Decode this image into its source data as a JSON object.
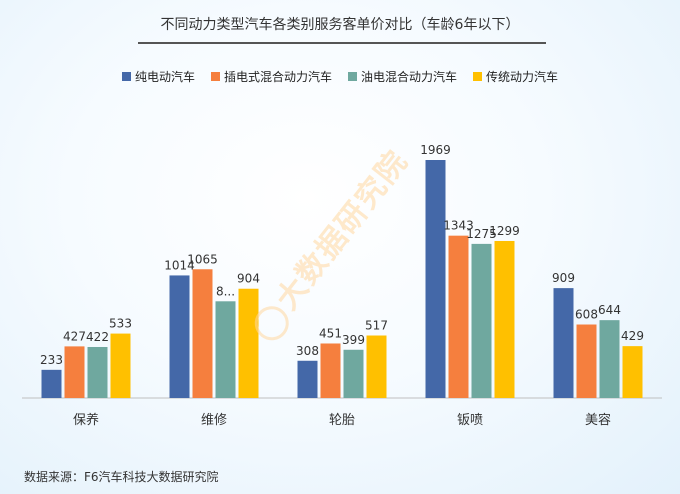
{
  "chart_data": {
    "type": "bar",
    "title": "不同动力类型汽车各类别服务客单价对比（车龄6年以下）",
    "categories": [
      "保养",
      "维修",
      "轮胎",
      "钣喷",
      "美容"
    ],
    "series": [
      {
        "name": "纯电动汽车",
        "color": "#4468a8",
        "values": [
          233,
          1014,
          308,
          1969,
          909
        ],
        "labels": [
          "233",
          "1014",
          "308",
          "1969",
          "909"
        ]
      },
      {
        "name": "插电式混合动力汽车",
        "color": "#f57f3e",
        "values": [
          427,
          1065,
          451,
          1343,
          608
        ],
        "labels": [
          "427",
          "1065",
          "451",
          "1343",
          "608"
        ]
      },
      {
        "name": "油电混合动力汽车",
        "color": "#6fa89f",
        "values": [
          422,
          800,
          399,
          1275,
          644
        ],
        "labels": [
          "422",
          "8...",
          "399",
          "1275",
          "644"
        ]
      },
      {
        "name": "传统动力汽车",
        "color": "#ffc000",
        "values": [
          533,
          904,
          517,
          1299,
          429
        ],
        "labels": [
          "533",
          "904",
          "517",
          "1299",
          "429"
        ]
      }
    ],
    "ylim": [
      0,
      2000
    ],
    "grid": false,
    "legend_position": "top-center"
  },
  "source_text": "数据来源：F6汽车科技大数据研究院",
  "watermark_text": "大数据研究院"
}
